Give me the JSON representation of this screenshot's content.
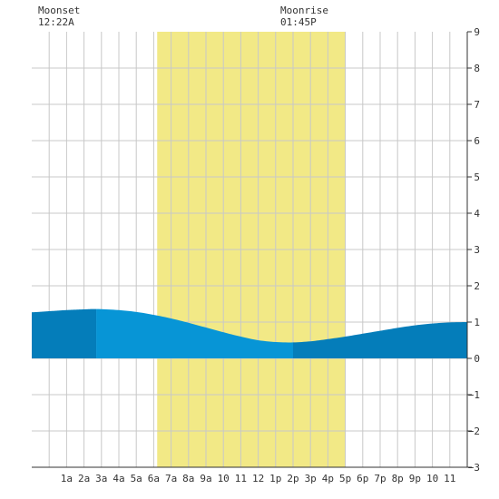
{
  "moon": {
    "moonset_label": "Moonset",
    "moonset_time": "12:22A",
    "moonrise_label": "Moonrise",
    "moonrise_time": "01:45P"
  },
  "chart_data": {
    "type": "area",
    "title": "",
    "xlabel": "",
    "ylabel": "",
    "x_range_hours": [
      -1,
      24
    ],
    "ylim": [
      -3,
      9
    ],
    "y_ticks": [
      9,
      8,
      7,
      6,
      5,
      4,
      3,
      2,
      1,
      0,
      -1,
      -2,
      -3
    ],
    "x_ticks": [
      {
        "hour": 1,
        "label": "1a"
      },
      {
        "hour": 2,
        "label": "2a"
      },
      {
        "hour": 3,
        "label": "3a"
      },
      {
        "hour": 4,
        "label": "4a"
      },
      {
        "hour": 5,
        "label": "5a"
      },
      {
        "hour": 6,
        "label": "6a"
      },
      {
        "hour": 7,
        "label": "7a"
      },
      {
        "hour": 8,
        "label": "8a"
      },
      {
        "hour": 9,
        "label": "9a"
      },
      {
        "hour": 10,
        "label": "10"
      },
      {
        "hour": 11,
        "label": "11"
      },
      {
        "hour": 12,
        "label": "12"
      },
      {
        "hour": 13,
        "label": "1p"
      },
      {
        "hour": 14,
        "label": "2p"
      },
      {
        "hour": 15,
        "label": "3p"
      },
      {
        "hour": 16,
        "label": "4p"
      },
      {
        "hour": 17,
        "label": "5p"
      },
      {
        "hour": 18,
        "label": "6p"
      },
      {
        "hour": 19,
        "label": "7p"
      },
      {
        "hour": 20,
        "label": "8p"
      },
      {
        "hour": 21,
        "label": "9p"
      },
      {
        "hour": 22,
        "label": "10"
      },
      {
        "hour": 23,
        "label": "11"
      }
    ],
    "daylight_hours": [
      6.2,
      17.0
    ],
    "moonset_hour": 0.37,
    "moonrise_hour": 13.75,
    "tide_series": {
      "x_hours": [
        -1,
        0,
        1,
        2,
        2.7,
        4,
        5,
        6,
        7,
        8,
        9,
        10,
        11,
        12,
        13,
        14,
        15,
        16,
        17,
        18,
        19,
        20,
        21,
        22,
        23,
        24
      ],
      "y_values": [
        1.27,
        1.3,
        1.33,
        1.35,
        1.36,
        1.33,
        1.28,
        1.2,
        1.1,
        0.98,
        0.85,
        0.72,
        0.6,
        0.5,
        0.45,
        0.44,
        0.47,
        0.53,
        0.6,
        0.68,
        0.76,
        0.84,
        0.91,
        0.96,
        0.99,
        1.0
      ]
    },
    "shade_segments": [
      {
        "from_hour": -1,
        "to_hour": 2.7,
        "shade": "dark"
      },
      {
        "from_hour": 2.7,
        "to_hour": 14.0,
        "shade": "light"
      },
      {
        "from_hour": 14.0,
        "to_hour": 24,
        "shade": "dark"
      }
    ],
    "grid": true
  },
  "colors": {
    "daylight": "#f2e986",
    "tide_light": "#0795d6",
    "tide_dark": "#047dba",
    "grid": "#c8c8c8",
    "axis": "#333333"
  }
}
